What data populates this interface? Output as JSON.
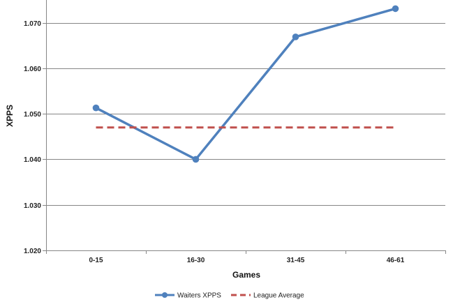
{
  "chart_data": {
    "type": "line",
    "categories": [
      "0-15",
      "16-30",
      "31-45",
      "46-61"
    ],
    "series": [
      {
        "name": "Waiters XPPS",
        "values": [
          1.0513,
          1.04,
          1.0669,
          1.0731
        ],
        "color": "#4F81BD",
        "style": "solid-markers"
      },
      {
        "name": "League Average",
        "values": [
          1.047,
          1.047,
          1.047,
          1.047
        ],
        "color": "#C0504D",
        "style": "dashed"
      }
    ],
    "title": "",
    "xlabel": "Games",
    "ylabel": "XPPS",
    "ylim": [
      1.02,
      1.075
    ],
    "yticks": [
      1.02,
      1.03,
      1.04,
      1.05,
      1.06,
      1.07
    ],
    "ytick_format_decimals": 3,
    "grid": "horizontal",
    "legend": "bottom-center"
  }
}
